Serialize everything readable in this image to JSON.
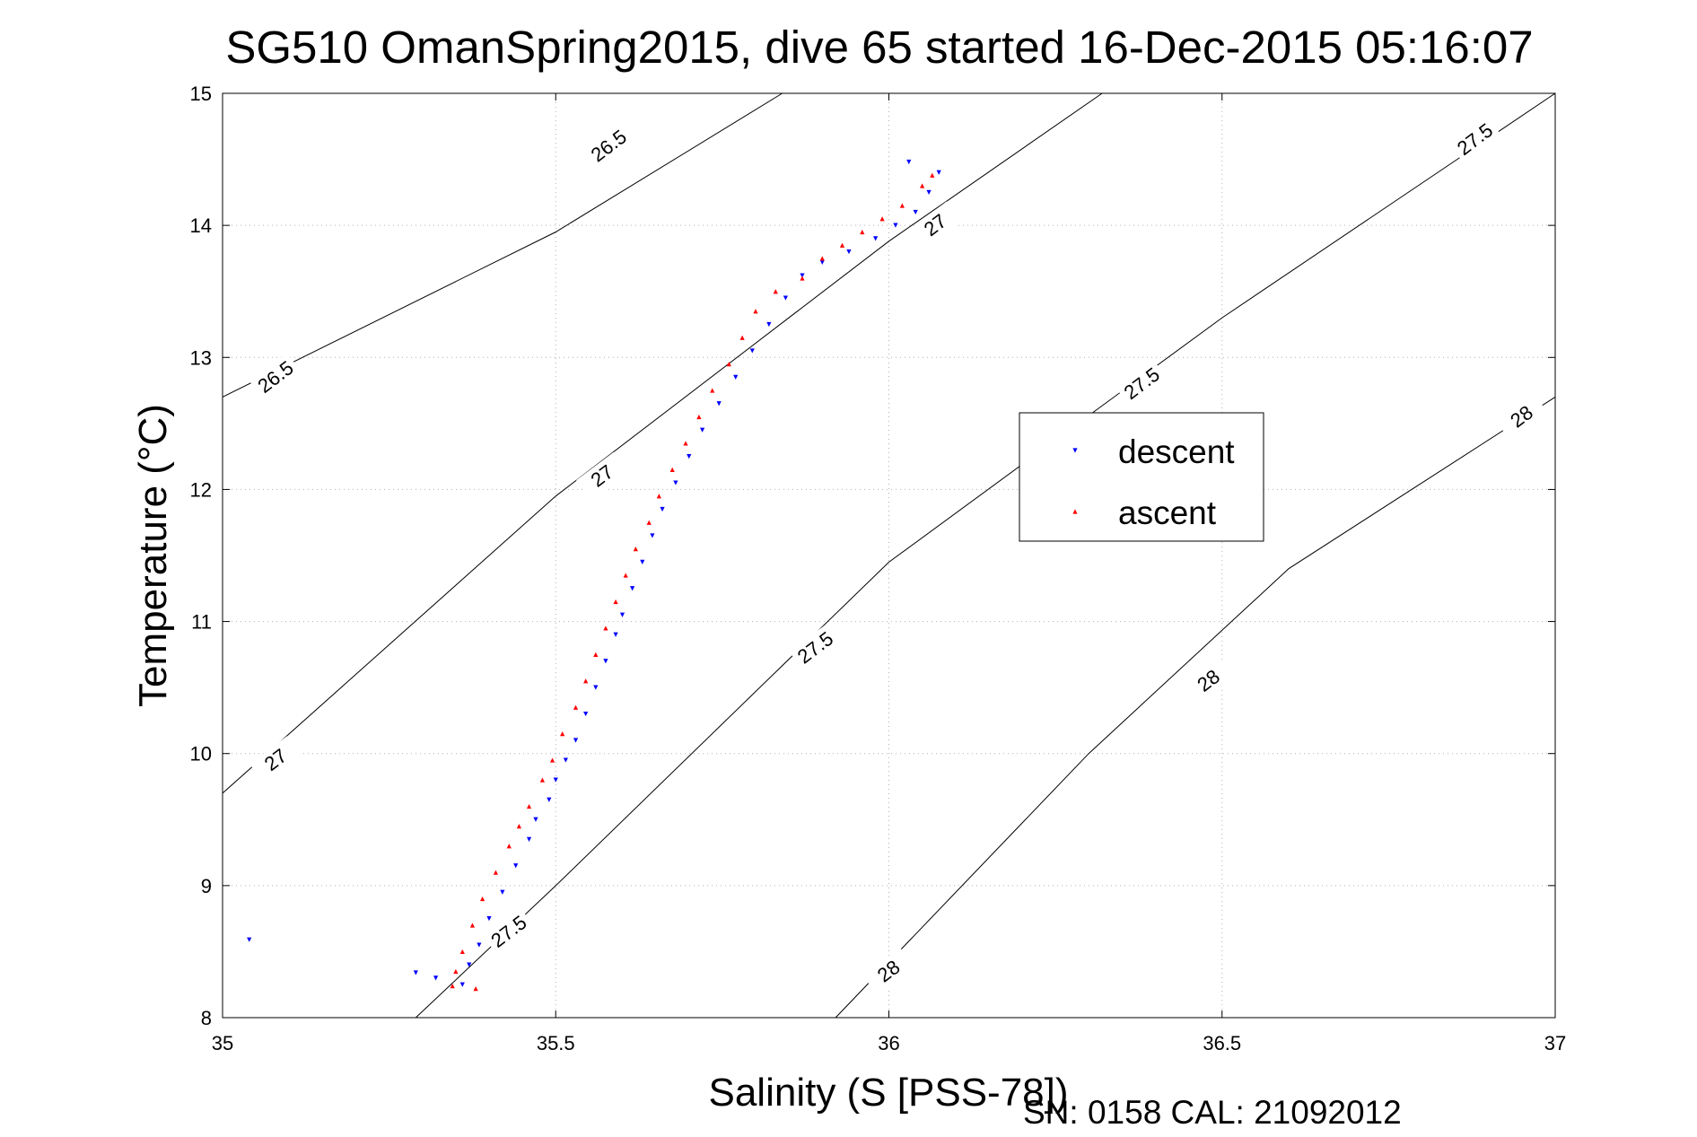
{
  "chart_data": {
    "type": "scatter",
    "title": "SG510 OmanSpring2015, dive 65 started 16-Dec-2015 05:16:07",
    "xlabel": "Salinity (S [PSS-78])",
    "ylabel": "Temperature (°C)",
    "xlim": [
      35,
      37
    ],
    "ylim": [
      8,
      15
    ],
    "xticks": [
      35,
      35.5,
      36,
      36.5,
      37
    ],
    "xtick_labels": [
      "35",
      "35.5",
      "36",
      "36.5",
      "37"
    ],
    "yticks": [
      8,
      9,
      10,
      11,
      12,
      13,
      14,
      15
    ],
    "ytick_labels": [
      "8",
      "9",
      "10",
      "11",
      "12",
      "13",
      "14",
      "15"
    ],
    "grid": true,
    "legend_position": "right",
    "footer": "SN: 0158  CAL: 21092012",
    "series": [
      {
        "name": "descent",
        "color": "#0000ff",
        "marker": "triangle-down",
        "points": [
          [
            35.04,
            8.59
          ],
          [
            35.29,
            8.34
          ],
          [
            35.32,
            8.3
          ],
          [
            35.36,
            8.25
          ],
          [
            35.37,
            8.4
          ],
          [
            35.385,
            8.55
          ],
          [
            35.4,
            8.75
          ],
          [
            35.42,
            8.95
          ],
          [
            35.44,
            9.15
          ],
          [
            35.46,
            9.35
          ],
          [
            35.47,
            9.5
          ],
          [
            35.49,
            9.65
          ],
          [
            35.5,
            9.8
          ],
          [
            35.515,
            9.95
          ],
          [
            35.53,
            10.1
          ],
          [
            35.545,
            10.3
          ],
          [
            35.56,
            10.5
          ],
          [
            35.575,
            10.7
          ],
          [
            35.59,
            10.9
          ],
          [
            35.6,
            11.05
          ],
          [
            35.615,
            11.25
          ],
          [
            35.63,
            11.45
          ],
          [
            35.645,
            11.65
          ],
          [
            35.66,
            11.85
          ],
          [
            35.68,
            12.05
          ],
          [
            35.7,
            12.25
          ],
          [
            35.72,
            12.45
          ],
          [
            35.745,
            12.65
          ],
          [
            35.77,
            12.85
          ],
          [
            35.795,
            13.05
          ],
          [
            35.82,
            13.25
          ],
          [
            35.845,
            13.45
          ],
          [
            35.87,
            13.62
          ],
          [
            35.9,
            13.72
          ],
          [
            35.94,
            13.8
          ],
          [
            35.98,
            13.9
          ],
          [
            36.01,
            14.0
          ],
          [
            36.04,
            14.1
          ],
          [
            36.06,
            14.25
          ],
          [
            36.075,
            14.4
          ],
          [
            36.03,
            14.48
          ]
        ]
      },
      {
        "name": "ascent",
        "color": "#ff0000",
        "marker": "triangle-up",
        "points": [
          [
            35.38,
            8.22
          ],
          [
            35.345,
            8.24
          ],
          [
            35.35,
            8.35
          ],
          [
            35.36,
            8.5
          ],
          [
            35.375,
            8.7
          ],
          [
            35.39,
            8.9
          ],
          [
            35.41,
            9.1
          ],
          [
            35.43,
            9.3
          ],
          [
            35.445,
            9.45
          ],
          [
            35.46,
            9.6
          ],
          [
            35.48,
            9.8
          ],
          [
            35.495,
            9.95
          ],
          [
            35.51,
            10.15
          ],
          [
            35.53,
            10.35
          ],
          [
            35.545,
            10.55
          ],
          [
            35.56,
            10.75
          ],
          [
            35.575,
            10.95
          ],
          [
            35.59,
            11.15
          ],
          [
            35.605,
            11.35
          ],
          [
            35.62,
            11.55
          ],
          [
            35.64,
            11.75
          ],
          [
            35.655,
            11.95
          ],
          [
            35.675,
            12.15
          ],
          [
            35.695,
            12.35
          ],
          [
            35.715,
            12.55
          ],
          [
            35.735,
            12.75
          ],
          [
            35.76,
            12.95
          ],
          [
            35.78,
            13.15
          ],
          [
            35.8,
            13.35
          ],
          [
            35.83,
            13.5
          ],
          [
            35.87,
            13.6
          ],
          [
            35.9,
            13.75
          ],
          [
            35.93,
            13.85
          ],
          [
            35.96,
            13.95
          ],
          [
            35.99,
            14.05
          ],
          [
            36.02,
            14.15
          ],
          [
            36.05,
            14.3
          ],
          [
            36.065,
            14.38
          ]
        ]
      }
    ],
    "isopycnals": [
      {
        "label": "26.5",
        "points": [
          [
            35.0,
            12.7
          ],
          [
            35.5,
            13.95
          ],
          [
            35.84,
            15.0
          ]
        ],
        "label_positions": [
          [
            35.08,
            12.85
          ],
          [
            35.58,
            14.6
          ]
        ]
      },
      {
        "label": "27",
        "points": [
          [
            35.0,
            9.7
          ],
          [
            35.5,
            11.95
          ],
          [
            36.0,
            13.88
          ],
          [
            36.32,
            15.0
          ]
        ],
        "label_positions": [
          [
            35.08,
            9.95
          ],
          [
            35.57,
            12.1
          ],
          [
            36.07,
            14.0
          ]
        ]
      },
      {
        "label": "27.5",
        "points": [
          [
            35.29,
            8.0
          ],
          [
            35.5,
            9.0
          ],
          [
            36.0,
            11.45
          ],
          [
            36.5,
            13.3
          ],
          [
            37.0,
            15.0
          ]
        ],
        "label_positions": [
          [
            35.43,
            8.65
          ],
          [
            35.89,
            10.8
          ],
          [
            36.38,
            12.8
          ],
          [
            36.88,
            14.65
          ]
        ]
      },
      {
        "label": "28",
        "points": [
          [
            35.92,
            8.0
          ],
          [
            36.3,
            10.0
          ],
          [
            36.6,
            11.4
          ],
          [
            37.0,
            12.7
          ]
        ],
        "label_positions": [
          [
            36.0,
            8.35
          ],
          [
            36.48,
            10.55
          ],
          [
            36.95,
            12.55
          ]
        ]
      }
    ]
  }
}
